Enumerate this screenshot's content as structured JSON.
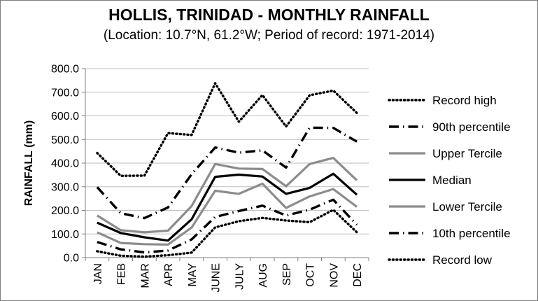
{
  "chart_data": {
    "type": "line",
    "title": "HOLLIS, TRINIDAD - MONTHLY RAINFALL",
    "subtitle": "(Location: 10.7°N, 61.2°W; Period of record: 1971-2014)",
    "ylabel": "RAINFALL (mm)",
    "xlabel": "",
    "ylim": [
      0,
      800
    ],
    "yticks": [
      "0.0",
      "100.0",
      "200.0",
      "300.0",
      "400.0",
      "500.0",
      "600.0",
      "700.0",
      "800.0"
    ],
    "grid": true,
    "legend_position": "right",
    "categories": [
      "JAN",
      "FEB",
      "MAR",
      "APR",
      "MAY",
      "JUNE",
      "JULY",
      "AUG",
      "SEP",
      "OCT",
      "NOV",
      "DEC"
    ],
    "series": [
      {
        "name": "Record high",
        "color": "#000000",
        "style": "dotted",
        "values": [
          443,
          346,
          347,
          527,
          519,
          738,
          575,
          688,
          555,
          687,
          707,
          612
        ]
      },
      {
        "name": "90th percentile",
        "color": "#000000",
        "style": "dashdot",
        "values": [
          298,
          188,
          167,
          212,
          353,
          466,
          444,
          454,
          381,
          550,
          549,
          491
        ]
      },
      {
        "name": "Upper Tercile",
        "color": "#8c8c8c",
        "style": "solid",
        "values": [
          178,
          116,
          107,
          114,
          218,
          396,
          377,
          375,
          302,
          396,
          422,
          327
        ]
      },
      {
        "name": "Median",
        "color": "#000000",
        "style": "solid",
        "values": [
          148,
          104,
          86,
          72,
          162,
          342,
          351,
          343,
          270,
          295,
          355,
          266
        ]
      },
      {
        "name": "Lower Tercile",
        "color": "#8c8c8c",
        "style": "solid",
        "values": [
          107,
          62,
          57,
          55,
          127,
          283,
          270,
          313,
          210,
          259,
          290,
          215
        ]
      },
      {
        "name": "10th percentile",
        "color": "#000000",
        "style": "dashdot",
        "values": [
          66,
          35,
          22,
          30,
          77,
          172,
          197,
          220,
          178,
          203,
          245,
          139
        ]
      },
      {
        "name": "Record low",
        "color": "#000000",
        "style": "dotted",
        "values": [
          27,
          8,
          4,
          10,
          21,
          128,
          154,
          168,
          157,
          150,
          202,
          107
        ]
      }
    ]
  }
}
